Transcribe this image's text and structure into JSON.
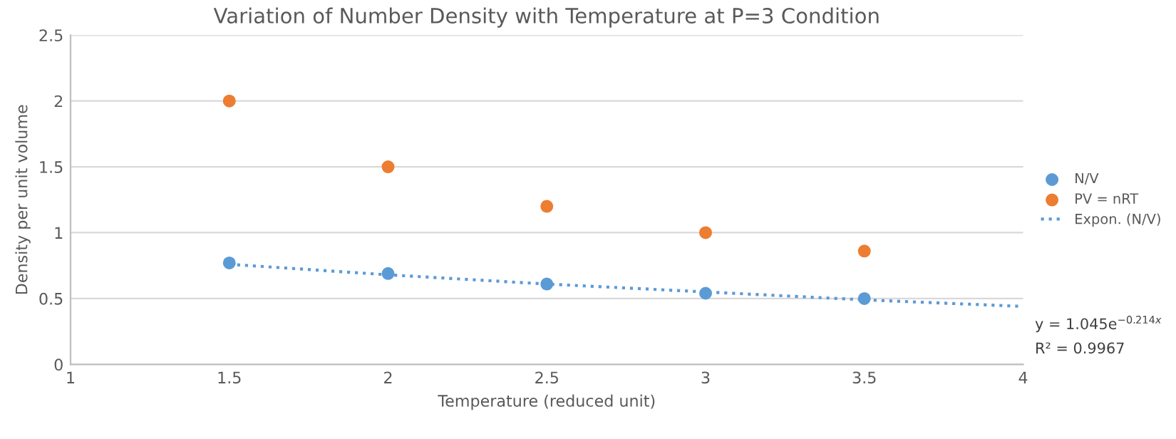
{
  "chart_data": {
    "type": "scatter",
    "title": "Variation of Number Density with Temperature at P=3 Condition",
    "xlabel": "Temperature (reduced unit)",
    "ylabel": "Density per unit volume",
    "x": [
      1.5,
      2,
      2.5,
      3,
      3.5
    ],
    "series": [
      {
        "name": "N/V",
        "color": "#5b9bd5",
        "values": [
          0.77,
          0.69,
          0.61,
          0.54,
          0.5
        ]
      },
      {
        "name": "PV = nRT",
        "color": "#ed7d31",
        "values": [
          2.0,
          1.5,
          1.2,
          1.0,
          0.86
        ]
      },
      {
        "name": "Expon. (N/V)",
        "type": "line",
        "color": "#5b9bd5",
        "line_style": "dotted",
        "marker": "none",
        "x": [
          1.5,
          2,
          2.5,
          3,
          3.5,
          4
        ],
        "values": [
          0.76,
          0.68,
          0.61,
          0.55,
          0.49,
          0.44
        ]
      }
    ],
    "marker": "circle",
    "xlim": [
      1,
      4
    ],
    "xticks": [
      1,
      1.5,
      2,
      2.5,
      3,
      3.5,
      4
    ],
    "ylim": [
      0,
      2.5
    ],
    "yticks": [
      0,
      0.5,
      1,
      1.5,
      2,
      2.5
    ],
    "grid": "y",
    "legend": "right",
    "annotations": [
      "y = 1.045e$^{−0.214x}$",
      "R² = 0.9967"
    ]
  }
}
